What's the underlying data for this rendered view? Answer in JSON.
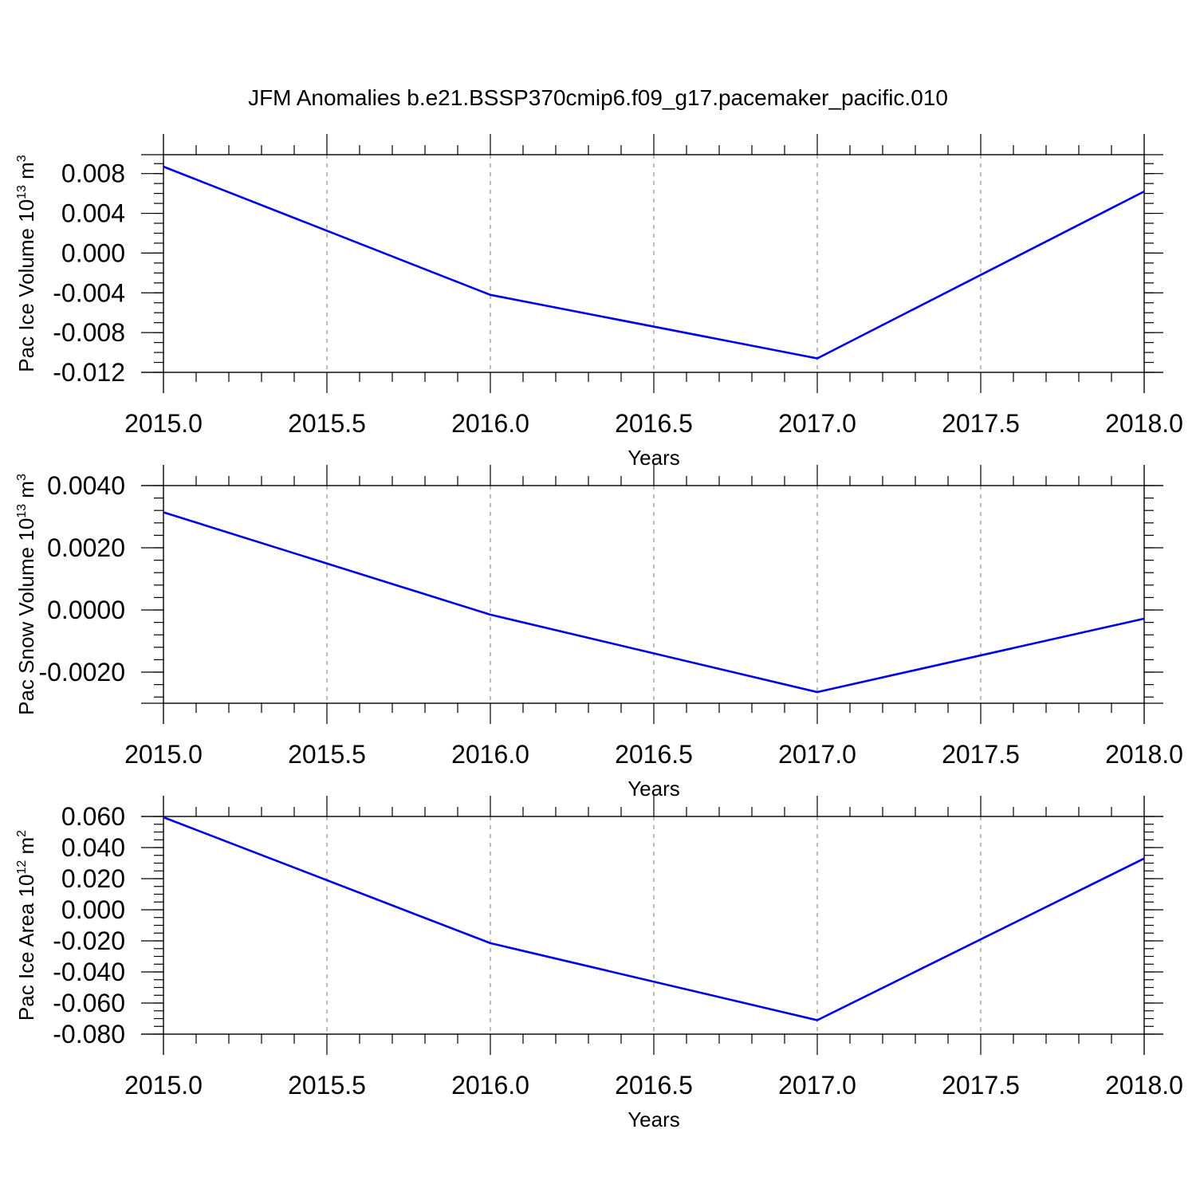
{
  "title": "JFM Anomalies b.e21.BSSP370cmip6.f09_g17.pacemaker_pacific.010",
  "line_color": "#0000ee",
  "chart_data": [
    {
      "type": "line",
      "ylabel": "Pac Ice Volume 10",
      "ylabel_exp": "13",
      "ylabel_unit": " m",
      "ylabel_unit_exp": "3",
      "xlabel": "Years",
      "x": [
        2015.0,
        2016.0,
        2017.0,
        2018.0
      ],
      "series": [
        {
          "values": [
            0.0087,
            -0.0042,
            -0.0106,
            0.0062
          ]
        }
      ],
      "xlim": [
        2015.0,
        2018.0
      ],
      "ylim": [
        -0.012,
        0.0099
      ],
      "xticks": [
        2015.0,
        2015.5,
        2016.0,
        2016.5,
        2017.0,
        2017.5,
        2018.0
      ],
      "xtick_labels": [
        "2015.0",
        "2015.5",
        "2016.0",
        "2016.5",
        "2017.0",
        "2017.5",
        "2018.0"
      ],
      "yticks": [
        0.008,
        0.004,
        0.0,
        -0.004,
        -0.008,
        -0.012
      ],
      "ytick_labels": [
        "0.008",
        "0.004",
        "0.000",
        "-0.004",
        "-0.008",
        "-0.012"
      ],
      "yminor_step": 0.001,
      "grid": "vertical dashed"
    },
    {
      "type": "line",
      "ylabel": "Pac Snow Volume 10",
      "ylabel_exp": "13",
      "ylabel_unit": " m",
      "ylabel_unit_exp": "3",
      "xlabel": "Years",
      "x": [
        2015.0,
        2016.0,
        2017.0,
        2018.0
      ],
      "series": [
        {
          "values": [
            0.00314,
            -0.00015,
            -0.00264,
            -0.00028
          ]
        }
      ],
      "xlim": [
        2015.0,
        2018.0
      ],
      "ylim": [
        -0.003,
        0.004
      ],
      "xticks": [
        2015.0,
        2015.5,
        2016.0,
        2016.5,
        2017.0,
        2017.5,
        2018.0
      ],
      "xtick_labels": [
        "2015.0",
        "2015.5",
        "2016.0",
        "2016.5",
        "2017.0",
        "2017.5",
        "2018.0"
      ],
      "yticks": [
        0.004,
        0.002,
        0.0,
        -0.002
      ],
      "ytick_labels": [
        "0.0040",
        "0.0020",
        "0.0000",
        "-0.0020"
      ],
      "yminor_step": 0.0004,
      "grid": "vertical dashed"
    },
    {
      "type": "line",
      "ylabel": "Pac Ice Area 10",
      "ylabel_exp": "12",
      "ylabel_unit": " m",
      "ylabel_unit_exp": "2",
      "xlabel": "Years",
      "x": [
        2015.0,
        2016.0,
        2017.0,
        2018.0
      ],
      "series": [
        {
          "values": [
            0.0595,
            -0.0215,
            -0.071,
            0.033
          ]
        }
      ],
      "xlim": [
        2015.0,
        2018.0
      ],
      "ylim": [
        -0.08,
        0.06
      ],
      "xticks": [
        2015.0,
        2015.5,
        2016.0,
        2016.5,
        2017.0,
        2017.5,
        2018.0
      ],
      "xtick_labels": [
        "2015.0",
        "2015.5",
        "2016.0",
        "2016.5",
        "2017.0",
        "2017.5",
        "2018.0"
      ],
      "yticks": [
        0.06,
        0.04,
        0.02,
        0.0,
        -0.02,
        -0.04,
        -0.06,
        -0.08
      ],
      "ytick_labels": [
        "0.060",
        "0.040",
        "0.020",
        "0.000",
        "-0.020",
        "-0.040",
        "-0.060",
        "-0.080"
      ],
      "yminor_step": 0.005,
      "grid": "vertical dashed"
    }
  ]
}
